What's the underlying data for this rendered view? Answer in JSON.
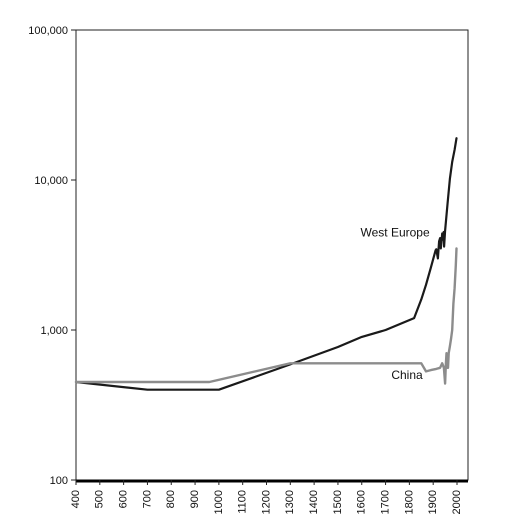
{
  "chart_data": {
    "type": "line",
    "title": "",
    "xlabel": "",
    "ylabel": "",
    "y_scale": "log",
    "xlim": [
      400,
      2000
    ],
    "ylim": [
      100,
      100000
    ],
    "grid": false,
    "x_ticks": [
      400,
      500,
      600,
      700,
      800,
      900,
      1000,
      1100,
      1200,
      1300,
      1400,
      1500,
      1600,
      1700,
      1800,
      1900,
      2000
    ],
    "y_ticks": [
      {
        "value": 100,
        "label": "100"
      },
      {
        "value": 1000,
        "label": "1,000"
      },
      {
        "value": 10000,
        "label": "10,000"
      },
      {
        "value": 100000,
        "label": "100,000"
      }
    ],
    "series": [
      {
        "name": "West Europe",
        "color": "#1a1a1a",
        "x": [
          400,
          700,
          1000,
          1300,
          1500,
          1600,
          1700,
          1820,
          1850,
          1870,
          1890,
          1910,
          1913,
          1920,
          1925,
          1929,
          1932,
          1935,
          1938,
          1940,
          1944,
          1946,
          1950,
          1960,
          1970,
          1980,
          1990,
          1998
        ],
        "y": [
          450,
          400,
          400,
          590,
          770,
          900,
          1000,
          1200,
          1600,
          2000,
          2600,
          3400,
          3450,
          3000,
          3900,
          4100,
          3500,
          3900,
          4400,
          4000,
          4500,
          3600,
          4600,
          6900,
          10200,
          13200,
          15900,
          19000
        ]
      },
      {
        "name": "China",
        "color": "#8c8c8c",
        "x": [
          400,
          960,
          1300,
          1700,
          1820,
          1850,
          1870,
          1890,
          1913,
          1929,
          1938,
          1945,
          1950,
          1953,
          1956,
          1958,
          1960,
          1962,
          1965,
          1970,
          1975,
          1980,
          1985,
          1990,
          1995,
          1998
        ],
        "y": [
          450,
          450,
          600,
          600,
          600,
          600,
          530,
          540,
          550,
          560,
          600,
          560,
          440,
          580,
          700,
          680,
          560,
          560,
          700,
          780,
          870,
          1000,
          1500,
          1900,
          2700,
          3500
        ]
      }
    ],
    "annotations": [
      {
        "text": "West Europe",
        "x": 1740,
        "y": 4200
      },
      {
        "text": "China",
        "x": 1790,
        "y": 470
      }
    ]
  }
}
